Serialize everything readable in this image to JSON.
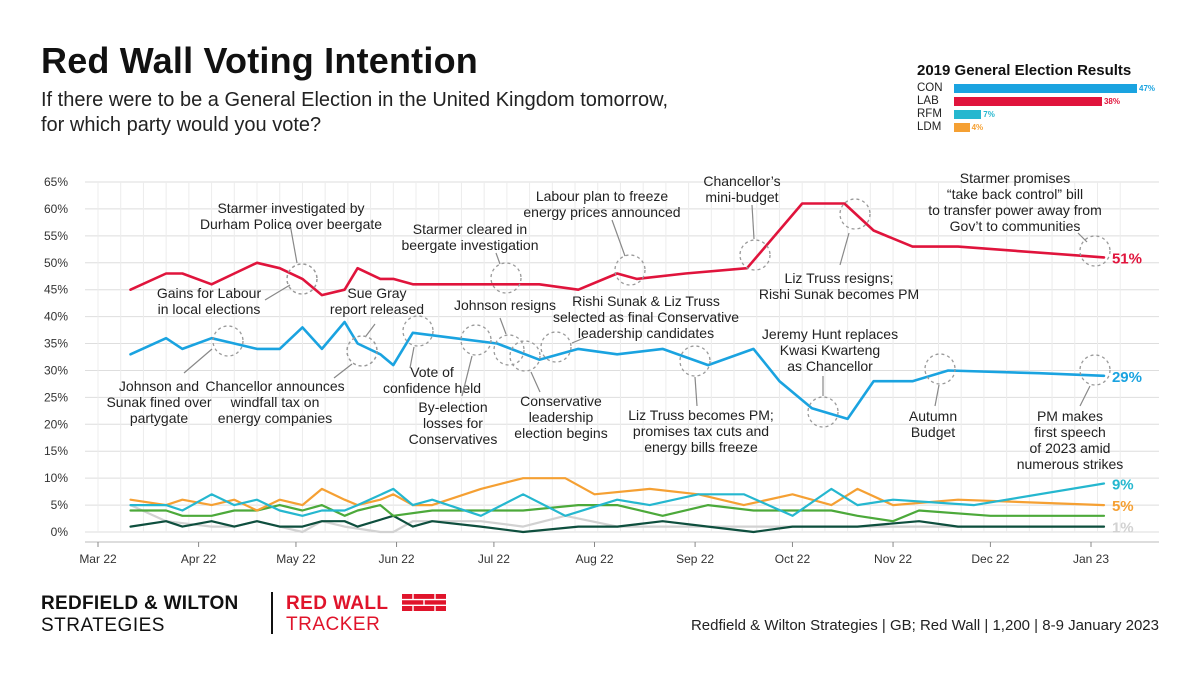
{
  "header": {
    "title": "Red Wall Voting Intention",
    "subtitle_line1": "If there were to be a General Election in the United Kingdom tomorrow,",
    "subtitle_line2": "for which party would you vote?"
  },
  "ge2019": {
    "title": "2019 General Election Results",
    "items": [
      {
        "party": "CON",
        "value": 47,
        "label": "47%",
        "color": "#1aa3e0"
      },
      {
        "party": "LAB",
        "value": 38,
        "label": "38%",
        "color": "#e0143c"
      },
      {
        "party": "RFM",
        "value": 7,
        "label": "7%",
        "color": "#25b7cf"
      },
      {
        "party": "LDM",
        "value": 4,
        "label": "4%",
        "color": "#f5a033"
      }
    ]
  },
  "chart_data": {
    "type": "line",
    "title": "Red Wall Voting Intention",
    "ylim": [
      0,
      65
    ],
    "yticks": [
      0,
      5,
      10,
      15,
      20,
      25,
      30,
      35,
      40,
      45,
      50,
      55,
      60,
      65
    ],
    "ytick_labels": [
      "0%",
      "5%",
      "10%",
      "15%",
      "20%",
      "25%",
      "30%",
      "35%",
      "40%",
      "45%",
      "50%",
      "55%",
      "60%",
      "65%"
    ],
    "x_range_days": [
      0,
      320
    ],
    "x_ticks": [
      {
        "label": "Mar 22",
        "day": 0
      },
      {
        "label": "Apr 22",
        "day": 31
      },
      {
        "label": "May 22",
        "day": 61
      },
      {
        "label": "Jun 22",
        "day": 92
      },
      {
        "label": "Jul 22",
        "day": 122
      },
      {
        "label": "Aug 22",
        "day": 153
      },
      {
        "label": "Sep 22",
        "day": 184
      },
      {
        "label": "Oct 22",
        "day": 214
      },
      {
        "label": "Nov 22",
        "day": 245
      },
      {
        "label": "Dec 22",
        "day": 275
      },
      {
        "label": "Jan 23",
        "day": 306
      }
    ],
    "grid": true,
    "series": [
      {
        "name": "LAB",
        "color": "#e0143c",
        "end_label": "51%",
        "points": [
          [
            10,
            45
          ],
          [
            21,
            48
          ],
          [
            26,
            48
          ],
          [
            35,
            46
          ],
          [
            42,
            48
          ],
          [
            49,
            50
          ],
          [
            56,
            49
          ],
          [
            63,
            47
          ],
          [
            69,
            44
          ],
          [
            76,
            45
          ],
          [
            80,
            49
          ],
          [
            87,
            47
          ],
          [
            91,
            47
          ],
          [
            97,
            46
          ],
          [
            110,
            46
          ],
          [
            123,
            46
          ],
          [
            136,
            46
          ],
          [
            148,
            45
          ],
          [
            160,
            48
          ],
          [
            166,
            47
          ],
          [
            181,
            48
          ],
          [
            200,
            49
          ],
          [
            217,
            61
          ],
          [
            230,
            61
          ],
          [
            239,
            56
          ],
          [
            251,
            53
          ],
          [
            265,
            53
          ],
          [
            310,
            51
          ]
        ]
      },
      {
        "name": "CON",
        "color": "#1aa3e0",
        "end_label": "29%",
        "points": [
          [
            10,
            33
          ],
          [
            21,
            36
          ],
          [
            26,
            34
          ],
          [
            35,
            36
          ],
          [
            42,
            35
          ],
          [
            49,
            34
          ],
          [
            56,
            34
          ],
          [
            63,
            38
          ],
          [
            69,
            34
          ],
          [
            76,
            39
          ],
          [
            80,
            35
          ],
          [
            87,
            33
          ],
          [
            91,
            31
          ],
          [
            97,
            37
          ],
          [
            110,
            36
          ],
          [
            123,
            35
          ],
          [
            136,
            32
          ],
          [
            148,
            34
          ],
          [
            160,
            33
          ],
          [
            174,
            34
          ],
          [
            188,
            31
          ],
          [
            202,
            34
          ],
          [
            210,
            28
          ],
          [
            220,
            23
          ],
          [
            231,
            21
          ],
          [
            239,
            28
          ],
          [
            251,
            28
          ],
          [
            262,
            30
          ],
          [
            290,
            29.5
          ],
          [
            310,
            29
          ]
        ]
      },
      {
        "name": "RFM",
        "color": "#25b7cf",
        "end_label": "9%",
        "points": [
          [
            10,
            5
          ],
          [
            21,
            5
          ],
          [
            26,
            4
          ],
          [
            35,
            7
          ],
          [
            42,
            5
          ],
          [
            49,
            6
          ],
          [
            56,
            4
          ],
          [
            63,
            3
          ],
          [
            69,
            4
          ],
          [
            76,
            4
          ],
          [
            80,
            5
          ],
          [
            91,
            8
          ],
          [
            97,
            5
          ],
          [
            103,
            6
          ],
          [
            118,
            3
          ],
          [
            131,
            7
          ],
          [
            144,
            3
          ],
          [
            160,
            6
          ],
          [
            170,
            5
          ],
          [
            185,
            7
          ],
          [
            199,
            7
          ],
          [
            214,
            3
          ],
          [
            226,
            8
          ],
          [
            234,
            5
          ],
          [
            245,
            6
          ],
          [
            270,
            5
          ],
          [
            310,
            9
          ]
        ]
      },
      {
        "name": "LDM",
        "color": "#f5a033",
        "end_label": "5%",
        "points": [
          [
            10,
            6
          ],
          [
            21,
            5
          ],
          [
            26,
            6
          ],
          [
            35,
            5
          ],
          [
            42,
            6
          ],
          [
            49,
            4
          ],
          [
            56,
            6
          ],
          [
            63,
            5
          ],
          [
            69,
            8
          ],
          [
            76,
            6
          ],
          [
            80,
            5
          ],
          [
            87,
            6
          ],
          [
            91,
            7
          ],
          [
            97,
            5
          ],
          [
            103,
            5
          ],
          [
            118,
            8
          ],
          [
            131,
            10
          ],
          [
            144,
            10
          ],
          [
            153,
            7
          ],
          [
            170,
            8
          ],
          [
            185,
            7
          ],
          [
            199,
            5
          ],
          [
            214,
            7
          ],
          [
            226,
            5
          ],
          [
            234,
            8
          ],
          [
            245,
            5
          ],
          [
            265,
            6
          ],
          [
            310,
            5
          ]
        ]
      },
      {
        "name": "GRN",
        "color": "#4ca93a",
        "end_label": "",
        "points": [
          [
            10,
            4
          ],
          [
            21,
            4
          ],
          [
            26,
            3
          ],
          [
            35,
            3
          ],
          [
            42,
            4
          ],
          [
            49,
            4
          ],
          [
            56,
            5
          ],
          [
            63,
            4
          ],
          [
            69,
            5
          ],
          [
            76,
            3
          ],
          [
            80,
            4
          ],
          [
            87,
            5
          ],
          [
            91,
            3
          ],
          [
            103,
            4
          ],
          [
            118,
            4
          ],
          [
            131,
            4
          ],
          [
            148,
            5
          ],
          [
            160,
            5
          ],
          [
            174,
            3
          ],
          [
            188,
            5
          ],
          [
            202,
            4
          ],
          [
            214,
            4
          ],
          [
            226,
            4
          ],
          [
            234,
            3
          ],
          [
            245,
            2
          ],
          [
            253,
            4
          ],
          [
            275,
            3
          ],
          [
            310,
            3
          ]
        ]
      },
      {
        "name": "OTH",
        "color": "#d2d2d2",
        "end_label": "1%",
        "points": [
          [
            10,
            5
          ],
          [
            21,
            2
          ],
          [
            35,
            1
          ],
          [
            42,
            1
          ],
          [
            49,
            2
          ],
          [
            63,
            0
          ],
          [
            69,
            2
          ],
          [
            76,
            1
          ],
          [
            87,
            0
          ],
          [
            91,
            0
          ],
          [
            97,
            2
          ],
          [
            118,
            2
          ],
          [
            131,
            1
          ],
          [
            144,
            3
          ],
          [
            160,
            1
          ],
          [
            174,
            1
          ],
          [
            188,
            1
          ],
          [
            214,
            1
          ],
          [
            245,
            1
          ],
          [
            275,
            1
          ],
          [
            310,
            1
          ]
        ]
      },
      {
        "name": "SNP/REF",
        "color": "#0e4f3e",
        "end_label": "",
        "points": [
          [
            10,
            1
          ],
          [
            21,
            2
          ],
          [
            26,
            1
          ],
          [
            35,
            2
          ],
          [
            42,
            1
          ],
          [
            49,
            2
          ],
          [
            56,
            1
          ],
          [
            63,
            1
          ],
          [
            69,
            2
          ],
          [
            76,
            2
          ],
          [
            80,
            1
          ],
          [
            91,
            3
          ],
          [
            97,
            1
          ],
          [
            103,
            2
          ],
          [
            118,
            1
          ],
          [
            131,
            0
          ],
          [
            148,
            1
          ],
          [
            160,
            1
          ],
          [
            174,
            2
          ],
          [
            188,
            1
          ],
          [
            202,
            0
          ],
          [
            214,
            1
          ],
          [
            234,
            1
          ],
          [
            253,
            2
          ],
          [
            265,
            1
          ],
          [
            310,
            1
          ]
        ]
      }
    ],
    "annotations": [
      {
        "lines": [
          "Starmer investigated by",
          "Durham Police over beergate"
        ],
        "target_day": 66,
        "target_value": 46.5
      },
      {
        "lines": [
          "Gains for Labour",
          "in local elections"
        ],
        "target_day": 66,
        "target_value": 46
      },
      {
        "lines": [
          "Starmer cleared in",
          "beergate investigation"
        ],
        "target_day": 128,
        "target_value": 46
      },
      {
        "lines": [
          "Labour plan to freeze",
          "energy prices announced"
        ],
        "target_day": 166,
        "target_value": 47.5
      },
      {
        "lines": [
          "Chancellor’s",
          "mini-budget"
        ],
        "target_day": 203,
        "target_value": 50.5
      },
      {
        "lines": [
          "Starmer promises",
          "“take back control” bill",
          "to transfer power away from",
          "Gov’t to communities"
        ],
        "target_day": 310,
        "target_value": 51.5
      },
      {
        "lines": [
          "Liz Truss resigns;",
          "Rishi Sunak becomes PM"
        ],
        "target_day": 233,
        "target_value": 58
      },
      {
        "lines": [
          "Sue Gray",
          "report released"
        ],
        "target_day": 83,
        "target_value": 33.5
      },
      {
        "lines": [
          "Johnson resigns"
        ],
        "target_day": 126,
        "target_value": 33
      },
      {
        "lines": [
          "Rishi Sunak & Liz Truss",
          "selected as final Conservative",
          "leadership candidates"
        ],
        "target_day": 142,
        "target_value": 33.5
      },
      {
        "lines": [
          "Jeremy Hunt replaces",
          "Kwasi Kwarteng",
          "as Chancellor"
        ],
        "target_day": 226,
        "target_value": 20.5
      },
      {
        "lines": [
          "Johnson and",
          "Sunak fined over",
          "partygate"
        ],
        "target_day": 44,
        "target_value": 34.5
      },
      {
        "lines": [
          "Chancellor announces",
          "windfall tax on",
          "energy companies"
        ],
        "target_day": 83,
        "target_value": 33
      },
      {
        "lines": [
          "Vote of",
          "confidence held"
        ],
        "target_day": 98,
        "target_value": 36.5
      },
      {
        "lines": [
          "By-election",
          "losses for",
          "Conservatives"
        ],
        "target_day": 119,
        "target_value": 35
      },
      {
        "lines": [
          "Conservative",
          "leadership",
          "election begins"
        ],
        "target_day": 133,
        "target_value": 32
      },
      {
        "lines": [
          "Liz Truss becomes PM;",
          "promises tax cuts and",
          "energy bills freeze"
        ],
        "target_day": 186,
        "target_value": 31
      },
      {
        "lines": [
          "Autumn",
          "Budget"
        ],
        "target_day": 262,
        "target_value": 29.5
      },
      {
        "lines": [
          "PM makes",
          "first speech",
          "of 2023 amid",
          "numerous strikes"
        ],
        "target_day": 310,
        "target_value": 29.5
      }
    ]
  },
  "footer": {
    "brand_line1": "REDFIELD & WILTON",
    "brand_line2": "STRATEGIES",
    "tracker_line1": "RED WALL",
    "tracker_line2": "TRACKER",
    "source": "Redfield & Wilton Strategies | GB; Red Wall | 1,200 | 8-9 January 2023"
  }
}
